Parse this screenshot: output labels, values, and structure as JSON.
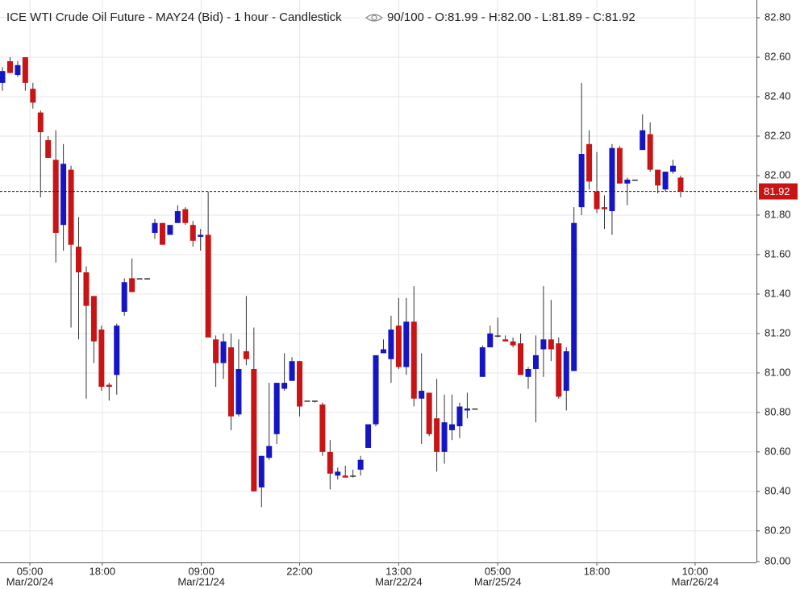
{
  "chart_data": {
    "type": "candlestick",
    "title": "ICE WTI Crude Oil Future - MAY24 (Bid) - 1 hour - Candlestick",
    "info": "90/100 - O:81.99 - H:82.00 - L:81.89 - C:81.92",
    "up_color": "#1515c4",
    "down_color": "#c81414",
    "wick_color": "#333333",
    "grid": true,
    "last_price": 81.92,
    "last_price_color": "#c81414",
    "xlim": [
      -0.32,
      98.95
    ],
    "ylim": [
      80.04,
      82.89
    ],
    "yticks": [
      {
        "value": 80,
        "label": "80.00"
      },
      {
        "value": 80.2,
        "label": "80.20"
      },
      {
        "value": 80.4,
        "label": "80.40"
      },
      {
        "value": 80.6,
        "label": "80.60"
      },
      {
        "value": 80.8,
        "label": "80.80"
      },
      {
        "value": 81,
        "label": "81.00"
      },
      {
        "value": 81.2,
        "label": "81.20"
      },
      {
        "value": 81.4,
        "label": "81.40"
      },
      {
        "value": 81.6,
        "label": "81.60"
      },
      {
        "value": 81.8,
        "label": "81.80"
      },
      {
        "value": 82,
        "label": "82.00"
      },
      {
        "value": 82.2,
        "label": "82.20"
      },
      {
        "value": 82.4,
        "label": "82.40"
      },
      {
        "value": 82.6,
        "label": "82.60"
      },
      {
        "value": 82.8,
        "label": "82.80"
      }
    ],
    "xticks": [
      {
        "value": 3.6,
        "label": "05:00"
      },
      {
        "value": 13.1,
        "label": "18:00"
      },
      {
        "value": 26.1,
        "label": "09:00"
      },
      {
        "value": 39,
        "label": "22:00"
      },
      {
        "value": 52,
        "label": "13:00"
      },
      {
        "value": 65,
        "label": "05:00"
      },
      {
        "value": 78,
        "label": "18:00"
      },
      {
        "value": 90.9,
        "label": "10:00"
      }
    ],
    "xtick_dates": [
      {
        "value": 3.6,
        "label": "Mar/20/24"
      },
      {
        "value": 26.1,
        "label": "Mar/21/24"
      },
      {
        "value": 52,
        "label": "Mar/22/24"
      },
      {
        "value": 65,
        "label": "Mar/25/24"
      },
      {
        "value": 90.9,
        "label": "Mar/26/24"
      }
    ],
    "open": [
      82.47,
      82.58,
      82.51,
      82.6,
      82.44,
      82.32,
      82.18,
      82.08,
      81.75,
      82.03,
      81.64,
      81.51,
      81.39,
      81.22,
      80.94,
      80.99,
      81.31,
      81.48,
      81.48,
      81.48,
      81.71,
      81.76,
      81.7,
      81.76,
      81.83,
      81.75,
      81.69,
      81.7,
      81.17,
      81.05,
      81.13,
      80.79,
      81.11,
      81.02,
      80.42,
      80.57,
      80.69,
      80.92,
      80.96,
      81.06,
      80.86,
      80.86,
      80.84,
      80.6,
      80.48,
      80.48,
      80.48,
      80.51,
      80.62,
      80.74,
      81.1,
      81.07,
      81.24,
      81.03,
      81.26,
      80.87,
      80.9,
      80.77,
      80.6,
      80.71,
      80.73,
      80.81,
      80.82,
      80.98,
      81.13,
      81.19,
      81.17,
      81.16,
      81.15,
      80.98,
      81.02,
      81.12,
      81.17,
      81.15,
      80.91,
      81.01,
      81.84,
      82.16,
      81.92,
      81.84,
      81.82,
      82.14,
      81.96,
      81.98,
      82.13,
      82.21,
      82.03,
      81.93,
      82.02,
      81.99
    ],
    "high": [
      82.55,
      82.6,
      82.58,
      82.6,
      82.47,
      82.33,
      82.2,
      82.23,
      82.16,
      82.05,
      81.79,
      81.54,
      81.39,
      81.24,
      80.95,
      81.25,
      81.48,
      81.58,
      81.48,
      81.48,
      81.78,
      81.76,
      81.75,
      81.85,
      81.84,
      81.77,
      81.73,
      81.92,
      81.19,
      81.2,
      81.2,
      81.17,
      81.39,
      81.23,
      80.58,
      80.95,
      80.95,
      81.1,
      81.08,
      81.06,
      80.86,
      80.86,
      80.85,
      80.66,
      80.52,
      80.53,
      80.51,
      80.58,
      80.74,
      81.09,
      81.17,
      81.29,
      81.38,
      81.38,
      81.44,
      81.1,
      80.9,
      80.97,
      80.89,
      80.89,
      80.85,
      80.9,
      80.82,
      81.14,
      81.24,
      81.28,
      81.19,
      81.18,
      81.2,
      81.03,
      81.19,
      81.44,
      81.37,
      81.18,
      81.13,
      81.84,
      82.47,
      82.23,
      82.12,
      81.9,
      82.16,
      82.15,
      81.99,
      81.98,
      82.31,
      82.27,
      82.03,
      82.02,
      82.08,
      82.0
    ],
    "low": [
      82.43,
      82.52,
      82.5,
      82.43,
      82.34,
      81.89,
      82.09,
      81.56,
      81.62,
      81.23,
      81.17,
      80.87,
      81.05,
      80.91,
      80.86,
      80.89,
      81.29,
      81.41,
      81.48,
      81.48,
      81.68,
      81.65,
      81.7,
      81.76,
      81.75,
      81.64,
      81.62,
      81.18,
      80.93,
      80.97,
      80.71,
      80.78,
      81.04,
      80.4,
      80.32,
      80.56,
      80.64,
      80.91,
      80.96,
      80.78,
      80.86,
      80.85,
      80.58,
      80.41,
      80.46,
      80.47,
      80.47,
      80.48,
      80.62,
      80.73,
      81.1,
      80.95,
      81.02,
      80.99,
      80.83,
      80.64,
      80.68,
      80.5,
      80.54,
      80.66,
      80.67,
      80.77,
      80.82,
      80.98,
      81.13,
      81.18,
      81.16,
      81.13,
      80.99,
      80.92,
      80.75,
      80.98,
      81.06,
      80.87,
      80.81,
      81.01,
      81.8,
      81.93,
      81.81,
      81.73,
      81.7,
      81.96,
      81.85,
      81.98,
      82.13,
      82.02,
      81.91,
      81.92,
      82.01,
      81.89
    ],
    "close": [
      82.53,
      82.52,
      82.56,
      82.47,
      82.37,
      82.22,
      82.09,
      81.71,
      82.06,
      81.65,
      81.51,
      81.34,
      81.16,
      80.93,
      80.93,
      81.24,
      81.46,
      81.41,
      81.48,
      81.48,
      81.76,
      81.65,
      81.75,
      81.82,
      81.76,
      81.67,
      81.7,
      81.18,
      81.05,
      81.16,
      80.78,
      81.02,
      81.07,
      80.4,
      80.58,
      80.63,
      80.95,
      80.95,
      81.06,
      80.83,
      80.86,
      80.86,
      80.6,
      80.49,
      80.5,
      80.47,
      80.48,
      80.56,
      80.74,
      81.09,
      81.12,
      81.22,
      81.03,
      81.26,
      80.87,
      80.91,
      80.69,
      80.6,
      80.75,
      80.74,
      80.83,
      80.82,
      80.82,
      81.13,
      81.2,
      81.19,
      81.16,
      81.14,
      80.99,
      81.02,
      81.09,
      81.17,
      81.12,
      80.88,
      81.11,
      81.76,
      82.11,
      81.97,
      81.83,
      81.83,
      82.14,
      81.96,
      81.98,
      81.98,
      82.23,
      82.03,
      81.95,
      82.02,
      82.05,
      81.92
    ]
  }
}
